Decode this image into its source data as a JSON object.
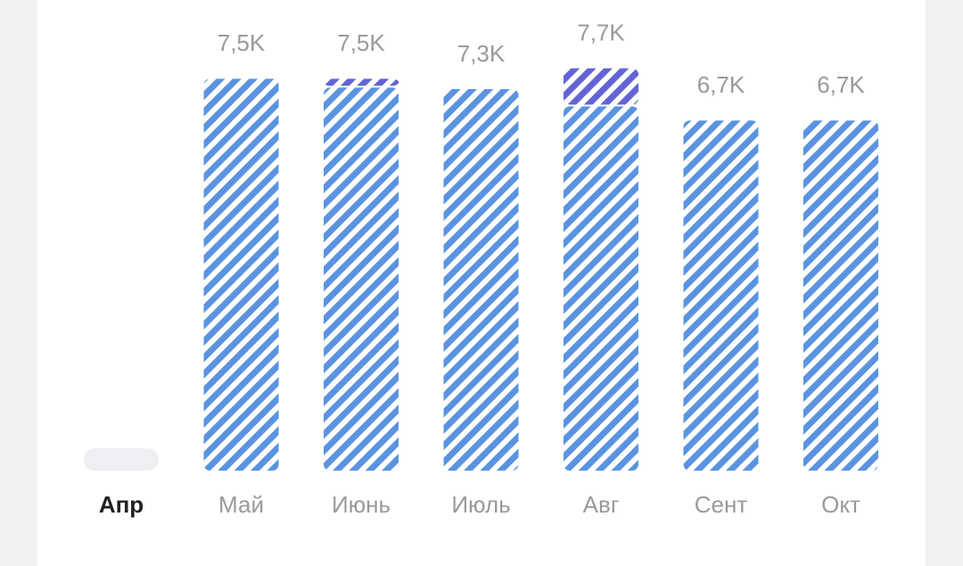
{
  "chart_data": {
    "type": "stacked_bar",
    "categories": [
      "Апр",
      "Май",
      "Июнь",
      "Июль",
      "Авг",
      "Сент",
      "Окт"
    ],
    "series": [
      {
        "color": "#5b93e0",
        "values": [
          0,
          7500,
          7330,
          7300,
          6970,
          6700,
          6700
        ]
      },
      {
        "color": "#6464d6",
        "values": [
          0,
          0,
          170,
          0,
          730,
          0,
          0
        ]
      }
    ],
    "totals": [
      null,
      7500,
      7500,
      7300,
      7700,
      6700,
      6700
    ],
    "value_labels": [
      null,
      "7,5K",
      "7,5K",
      "7,3K",
      "7,7K",
      "6,7K",
      "6,7K"
    ],
    "selected": "Апр",
    "ylim": [
      0,
      8000
    ]
  }
}
